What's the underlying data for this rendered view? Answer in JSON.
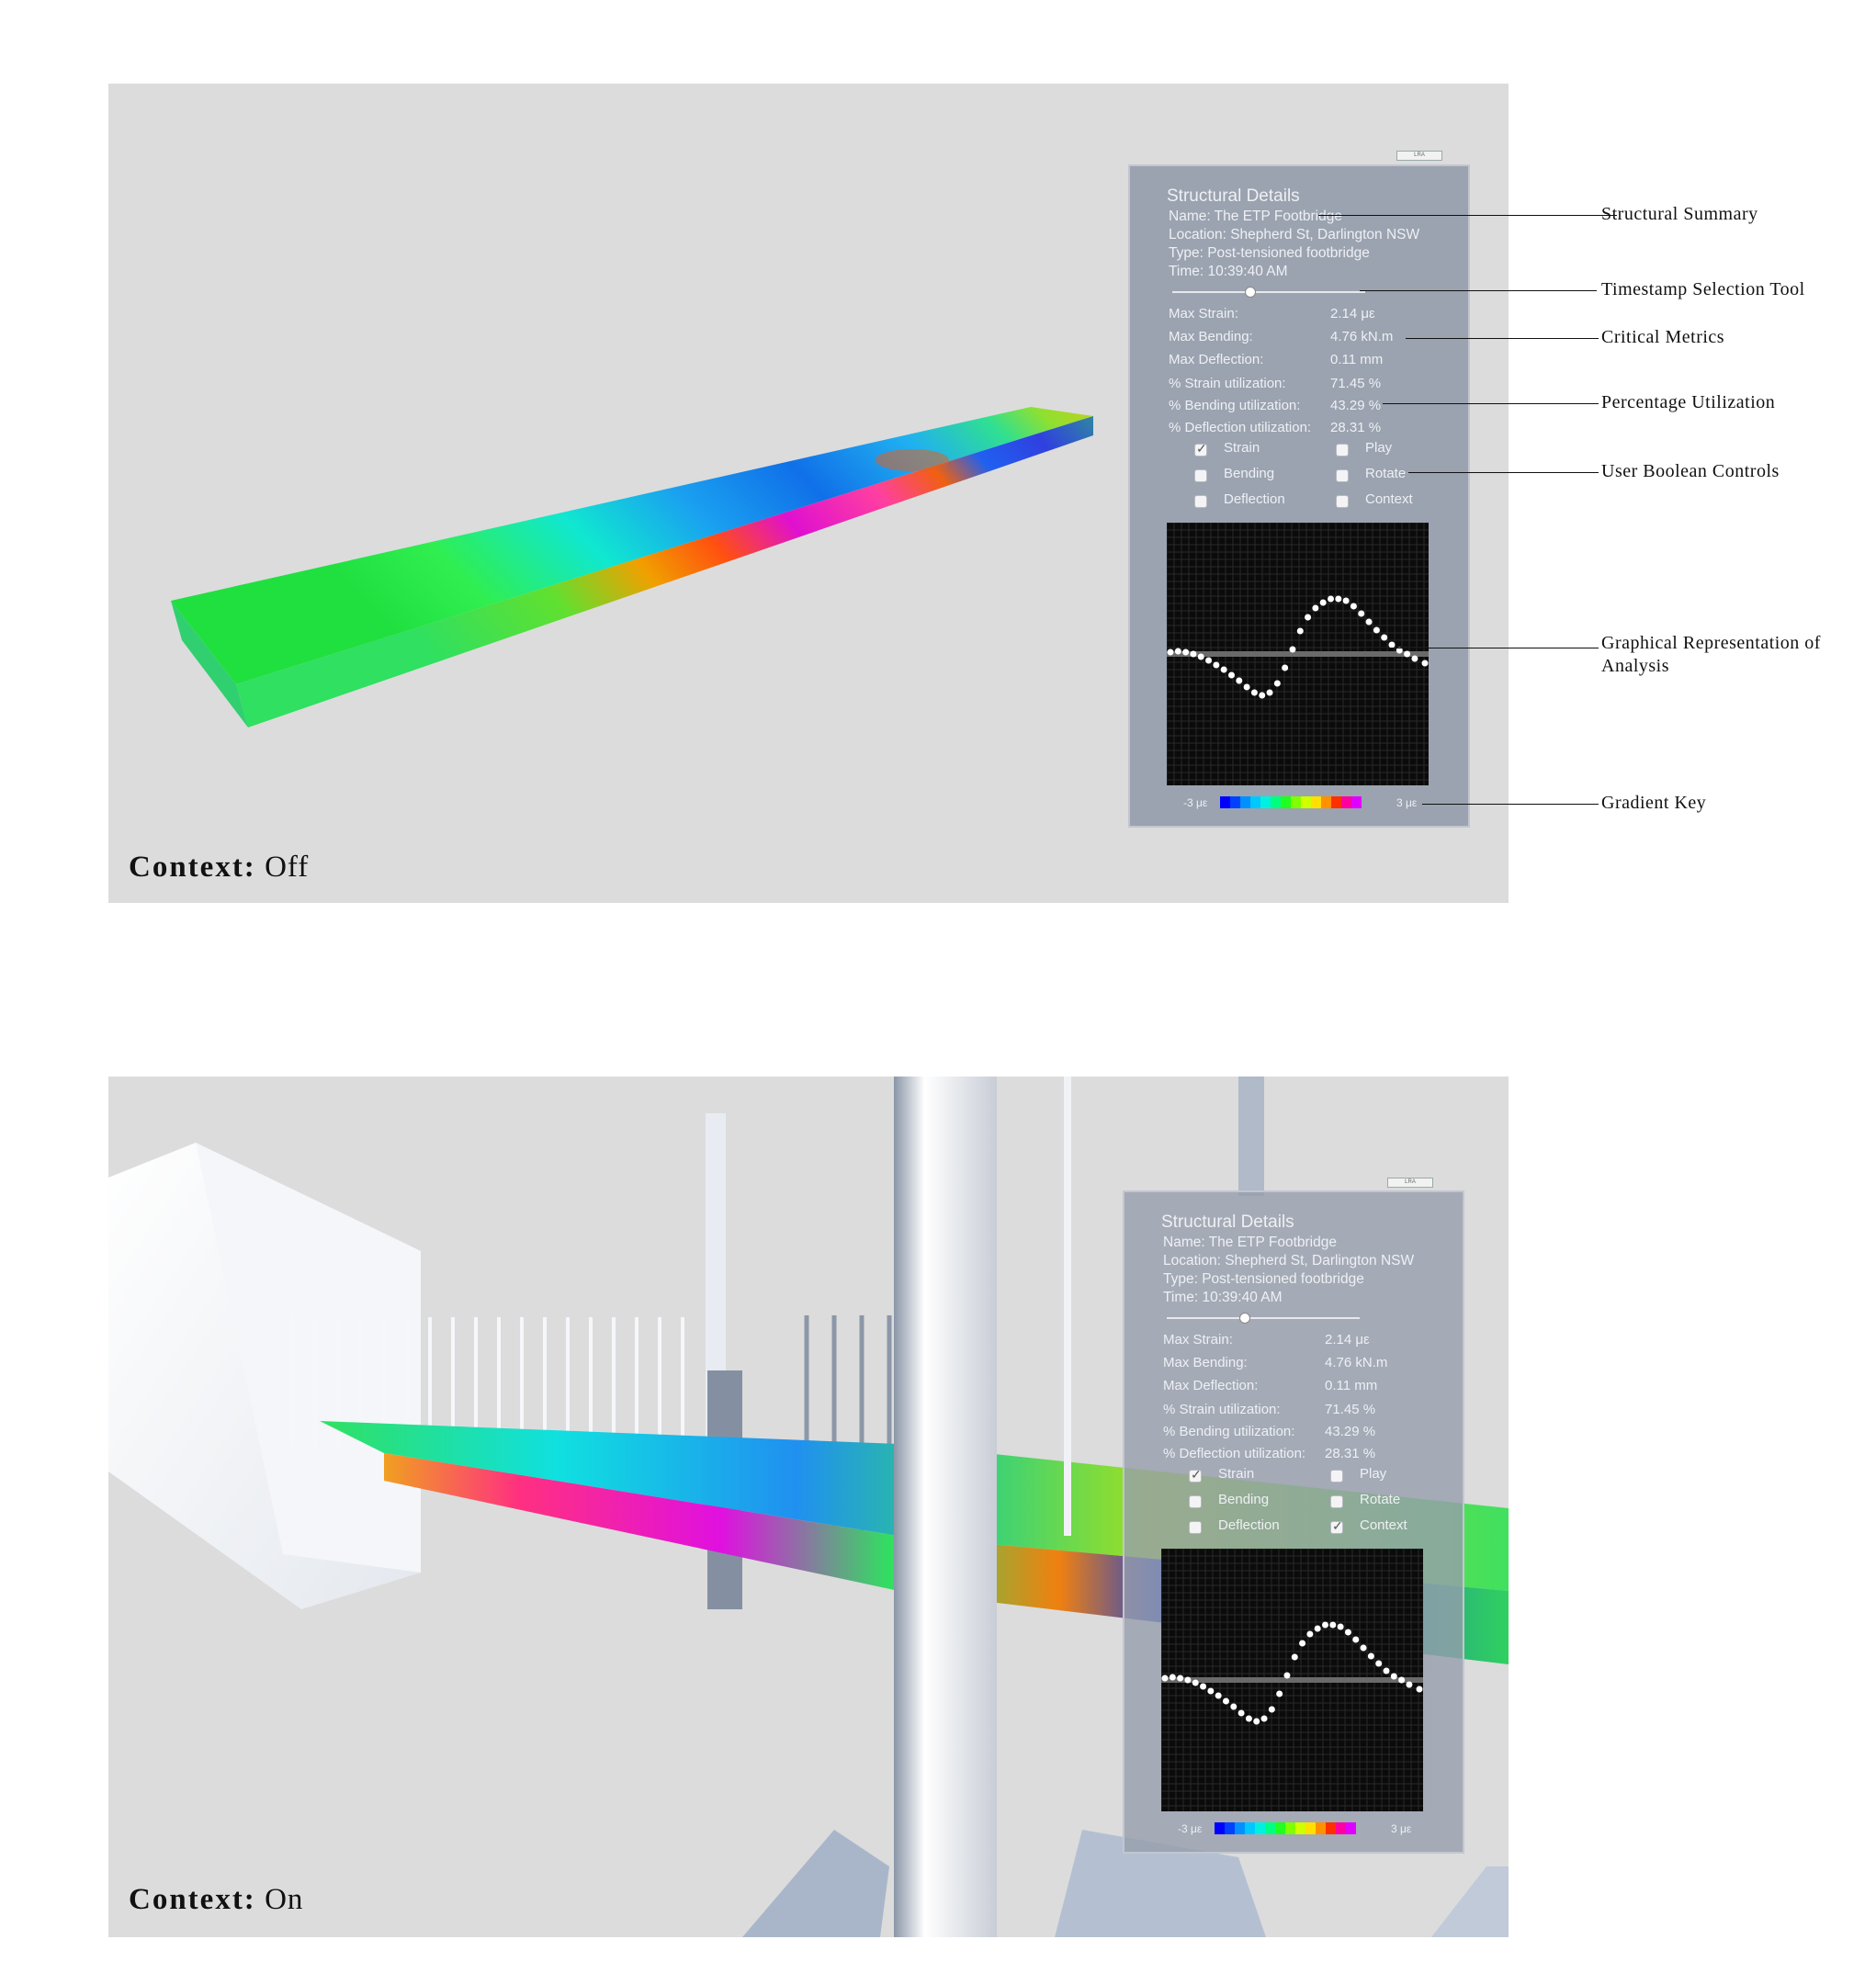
{
  "panel": {
    "title": "Structural Details",
    "name": "Name: The ETP Footbridge",
    "location": "Location: Shepherd St, Darlington NSW",
    "type": "Type: Post-tensioned footbridge",
    "time": "Time: 10:39:40 AM",
    "timestamp_fraction": 0.4,
    "metrics": [
      {
        "label": "Max Strain:",
        "value": "2.14 με"
      },
      {
        "label": "Max Bending:",
        "value": "4.76 kN.m"
      },
      {
        "label": "Max Deflection:",
        "value": "0.11 mm"
      },
      {
        "label": "% Strain utilization:",
        "value": "71.45 %"
      },
      {
        "label": "% Bending utilization:",
        "value": "43.29 %"
      },
      {
        "label": "% Deflection utilization:",
        "value": "28.31 %"
      }
    ],
    "controls": {
      "strain": "Strain",
      "bending": "Bending",
      "deflection": "Deflection",
      "play": "Play",
      "rotate": "Rotate",
      "context": "Context"
    },
    "key": {
      "min": "-3 με",
      "max": "3 με"
    },
    "mini_button": "LRA"
  },
  "scenes": [
    {
      "label_bold": "Context:",
      "label_state": "Off",
      "strain_checked": true,
      "context_checked": false
    },
    {
      "label_bold": "Context:",
      "label_state": "On",
      "strain_checked": true,
      "context_checked": true
    }
  ],
  "annotations": [
    "Structural Summary",
    "Timestamp Selection Tool",
    "Critical Metrics",
    "Percentage Utilization",
    "User Boolean Controls",
    "Graphical Representation of Analysis",
    "Gradient Key"
  ],
  "colors": {
    "gradient": [
      "#0000ff",
      "#0040ff",
      "#0090ff",
      "#00c8ff",
      "#00f0e0",
      "#00ff80",
      "#20ff20",
      "#80ff00",
      "#d0ff00",
      "#ffe000",
      "#ff9000",
      "#ff3000",
      "#ff00a0",
      "#e000ff"
    ],
    "panel_bg": "#969eac",
    "scene_bg": "#dcdcdc"
  },
  "chart_data": {
    "type": "scatter",
    "title": "Graphical Representation of Analysis",
    "x": [
      0,
      0.03,
      0.06,
      0.09,
      0.12,
      0.15,
      0.18,
      0.21,
      0.24,
      0.27,
      0.3,
      0.33,
      0.36,
      0.39,
      0.42,
      0.45,
      0.48,
      0.51,
      0.54,
      0.57,
      0.6,
      0.63,
      0.66,
      0.69,
      0.72,
      0.75,
      0.78,
      0.81,
      0.84,
      0.87,
      0.9,
      0.93,
      0.96,
      1.0
    ],
    "y": [
      0.02,
      0.03,
      0.02,
      0.0,
      -0.03,
      -0.07,
      -0.12,
      -0.17,
      -0.23,
      -0.29,
      -0.36,
      -0.42,
      -0.45,
      -0.42,
      -0.32,
      -0.15,
      0.05,
      0.25,
      0.4,
      0.5,
      0.56,
      0.6,
      0.6,
      0.58,
      0.52,
      0.44,
      0.35,
      0.26,
      0.18,
      0.1,
      0.04,
      0.0,
      -0.05,
      -0.1
    ],
    "xlim": [
      0,
      1
    ],
    "ylim": [
      -1,
      1
    ],
    "xlabel": "",
    "ylabel": ""
  }
}
